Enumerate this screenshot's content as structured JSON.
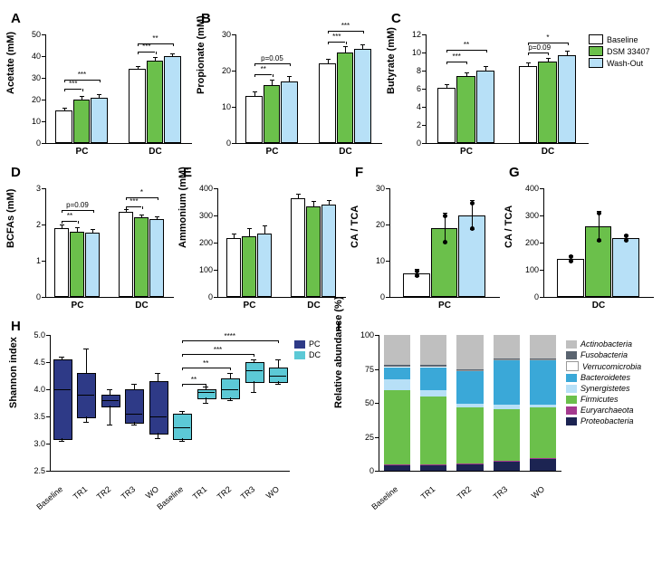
{
  "colors": {
    "baseline": "#ffffff",
    "dsm": "#6bc04b",
    "washout": "#b7e0f7",
    "pc_box": "#2e3a87",
    "dc_box": "#5cc9d6",
    "border": "#000000",
    "phyla": {
      "Proteobacteria": "#1c2452",
      "Euryarchaeota": "#a43a8f",
      "Firmicutes": "#6bc04b",
      "Synergistetes": "#b7e0f7",
      "Bacteroidetes": "#3aa8d8",
      "Verrucomicrobia": "#ffffff",
      "Fusobacteria": "#5a6470",
      "Actinobacteria": "#bfbfbf"
    }
  },
  "legend_conditions": [
    "Baseline",
    "DSM 33407",
    "Wash-Out"
  ],
  "panels_row1": [
    {
      "id": "A",
      "ylabel": "Acetate (mM)",
      "ymin": 0,
      "ymax": 50,
      "ytick": 10,
      "groups": [
        {
          "name": "PC",
          "bars": [
            {
              "v": 15,
              "e": 1
            },
            {
              "v": 20,
              "e": 1.2
            },
            {
              "v": 21,
              "e": 1
            }
          ],
          "sig": [
            {
              "from": 0,
              "to": 1,
              "label": "***",
              "h": 25
            },
            {
              "from": 0,
              "to": 2,
              "label": "***",
              "h": 29
            }
          ]
        },
        {
          "name": "DC",
          "bars": [
            {
              "v": 34,
              "e": 1
            },
            {
              "v": 38,
              "e": 1.2
            },
            {
              "v": 40,
              "e": 1
            }
          ],
          "sig": [
            {
              "from": 0,
              "to": 1,
              "label": "***",
              "h": 42
            },
            {
              "from": 0,
              "to": 2,
              "label": "**",
              "h": 46
            }
          ]
        }
      ]
    },
    {
      "id": "B",
      "ylabel": "Propionate (mM)",
      "ymin": 0,
      "ymax": 30,
      "ytick": 10,
      "groups": [
        {
          "name": "PC",
          "bars": [
            {
              "v": 13,
              "e": 1
            },
            {
              "v": 16,
              "e": 1.3
            },
            {
              "v": 17,
              "e": 1.3
            }
          ],
          "sig": [
            {
              "from": 0,
              "to": 1,
              "label": "**",
              "h": 19
            },
            {
              "from": 0,
              "to": 2,
              "label": "p=0.05",
              "h": 22
            }
          ]
        },
        {
          "name": "DC",
          "bars": [
            {
              "v": 22,
              "e": 1
            },
            {
              "v": 25,
              "e": 1.5
            },
            {
              "v": 26,
              "e": 1
            }
          ],
          "sig": [
            {
              "from": 0,
              "to": 1,
              "label": "***",
              "h": 28
            },
            {
              "from": 0,
              "to": 2,
              "label": "***",
              "h": 31
            }
          ]
        }
      ]
    },
    {
      "id": "C",
      "ylabel": "Butyrate (mM)",
      "ymin": 0,
      "ymax": 12,
      "ytick": 2,
      "groups": [
        {
          "name": "PC",
          "bars": [
            {
              "v": 6.1,
              "e": 0.3
            },
            {
              "v": 7.4,
              "e": 0.3
            },
            {
              "v": 8.0,
              "e": 0.4
            }
          ],
          "sig": [
            {
              "from": 0,
              "to": 1,
              "label": "***",
              "h": 9
            },
            {
              "from": 0,
              "to": 2,
              "label": "**",
              "h": 10.3
            }
          ]
        },
        {
          "name": "DC",
          "bars": [
            {
              "v": 8.5,
              "e": 0.3
            },
            {
              "v": 9.0,
              "e": 0.3
            },
            {
              "v": 9.7,
              "e": 0.4
            }
          ],
          "sig": [
            {
              "from": 0,
              "to": 1,
              "label": "p=0.09",
              "h": 10
            },
            {
              "from": 0,
              "to": 2,
              "label": "*",
              "h": 11.1
            }
          ]
        }
      ]
    }
  ],
  "panels_row2": [
    {
      "id": "D",
      "ylabel": "BCFAs (mM)",
      "ymin": 0,
      "ymax": 3,
      "ytick": 1,
      "groups": [
        {
          "name": "PC",
          "bars": [
            {
              "v": 1.9,
              "e": 0.08
            },
            {
              "v": 1.8,
              "e": 0.1
            },
            {
              "v": 1.78,
              "e": 0.08
            }
          ],
          "sig": [
            {
              "from": 0,
              "to": 1,
              "label": "**",
              "h": 2.1
            },
            {
              "from": 0,
              "to": 2,
              "label": "p=0.09",
              "h": 2.4
            }
          ]
        },
        {
          "name": "DC",
          "bars": [
            {
              "v": 2.35,
              "e": 0.06
            },
            {
              "v": 2.2,
              "e": 0.06
            },
            {
              "v": 2.15,
              "e": 0.06
            }
          ],
          "sig": [
            {
              "from": 0,
              "to": 1,
              "label": "***",
              "h": 2.5
            },
            {
              "from": 0,
              "to": 2,
              "label": "*",
              "h": 2.75
            }
          ]
        }
      ]
    },
    {
      "id": "E",
      "ylabel": "Ammonium (mM)",
      "ymin": 0,
      "ymax": 400,
      "ytick": 100,
      "groups": [
        {
          "name": "PC",
          "bars": [
            {
              "v": 218,
              "e": 12
            },
            {
              "v": 225,
              "e": 25
            },
            {
              "v": 235,
              "e": 25
            }
          ],
          "sig": []
        },
        {
          "name": "DC",
          "bars": [
            {
              "v": 365,
              "e": 12
            },
            {
              "v": 335,
              "e": 15
            },
            {
              "v": 340,
              "e": 15
            }
          ],
          "sig": []
        }
      ]
    },
    {
      "id": "F",
      "ylabel": "CA / TCA",
      "ymin": 0,
      "ymax": 30,
      "ytick": 10,
      "single": "PC",
      "bars": [
        {
          "v": 6.5,
          "e": 1,
          "dots": [
            5.8,
            7.2
          ]
        },
        {
          "v": 19,
          "e": 4,
          "dots": [
            15.2,
            22.5
          ]
        },
        {
          "v": 22.5,
          "e": 4,
          "dots": [
            19,
            26
          ]
        }
      ]
    },
    {
      "id": "G",
      "ylabel": "CA / TCA",
      "ymin": 0,
      "ymax": 400,
      "ytick": 100,
      "single": "DC",
      "bars": [
        {
          "v": 140,
          "e": 10,
          "dots": [
            132,
            148
          ]
        },
        {
          "v": 260,
          "e": 55,
          "dots": [
            210,
            310
          ]
        },
        {
          "v": 218,
          "e": 10,
          "dots": [
            210,
            226
          ]
        }
      ]
    }
  ],
  "panel_H": {
    "id": "H",
    "ylabel": "Shannon index",
    "ymin": 2.5,
    "ymax": 5.0,
    "ytick": 0.5,
    "x_groups": [
      "Baseline",
      "TR1",
      "TR2",
      "TR3",
      "WO"
    ],
    "series": [
      {
        "name": "PC",
        "color_key": "pc_box",
        "boxes": [
          {
            "q1": 3.1,
            "med": 4.0,
            "q3": 4.55,
            "lo": 3.05,
            "hi": 4.6
          },
          {
            "q1": 3.5,
            "med": 3.9,
            "q3": 4.3,
            "lo": 3.4,
            "hi": 4.75
          },
          {
            "q1": 3.7,
            "med": 3.8,
            "q3": 3.9,
            "lo": 3.35,
            "hi": 4.0
          },
          {
            "q1": 3.4,
            "med": 3.55,
            "q3": 4.0,
            "lo": 3.35,
            "hi": 4.1
          },
          {
            "q1": 3.2,
            "med": 3.5,
            "q3": 4.15,
            "lo": 3.1,
            "hi": 4.3
          }
        ]
      },
      {
        "name": "DC",
        "color_key": "dc_box",
        "boxes": [
          {
            "q1": 3.1,
            "med": 3.3,
            "q3": 3.55,
            "lo": 3.05,
            "hi": 3.6
          },
          {
            "q1": 3.85,
            "med": 3.95,
            "q3": 4.0,
            "lo": 3.75,
            "hi": 4.05
          },
          {
            "q1": 3.85,
            "med": 4.0,
            "q3": 4.2,
            "lo": 3.8,
            "hi": 4.3
          },
          {
            "q1": 4.15,
            "med": 4.35,
            "q3": 4.5,
            "lo": 3.95,
            "hi": 4.55
          },
          {
            "q1": 4.15,
            "med": 4.25,
            "q3": 4.4,
            "lo": 4.1,
            "hi": 4.55
          }
        ]
      }
    ],
    "sig": [
      {
        "from": 0,
        "to": 1,
        "label": "**",
        "h": 4.1
      },
      {
        "from": 0,
        "to": 2,
        "label": "**",
        "h": 4.4
      },
      {
        "from": 0,
        "to": 3,
        "label": "***",
        "h": 4.65
      },
      {
        "from": 0,
        "to": 4,
        "label": "****",
        "h": 4.9
      }
    ]
  },
  "panel_I": {
    "id": "I",
    "ylabel": "Relative abundance (%)",
    "ymin": 0,
    "ymax": 100,
    "ytick": 25,
    "x_groups": [
      "Baseline",
      "TR1",
      "TR2",
      "TR3",
      "WO"
    ],
    "order": [
      "Proteobacteria",
      "Euryarchaeota",
      "Firmicutes",
      "Synergistetes",
      "Bacteroidetes",
      "Verrucomicrobia",
      "Fusobacteria",
      "Actinobacteria"
    ],
    "stacks": [
      {
        "Proteobacteria": 4,
        "Euryarchaeota": 0.5,
        "Firmicutes": 55,
        "Synergistetes": 8,
        "Bacteroidetes": 9,
        "Verrucomicrobia": 0.5,
        "Fusobacteria": 1,
        "Actinobacteria": 22
      },
      {
        "Proteobacteria": 4,
        "Euryarchaeota": 0.5,
        "Firmicutes": 50,
        "Synergistetes": 5,
        "Bacteroidetes": 17,
        "Verrucomicrobia": 0.5,
        "Fusobacteria": 1,
        "Actinobacteria": 22
      },
      {
        "Proteobacteria": 5,
        "Euryarchaeota": 0.5,
        "Firmicutes": 41,
        "Synergistetes": 3,
        "Bacteroidetes": 24,
        "Verrucomicrobia": 0.5,
        "Fusobacteria": 1,
        "Actinobacteria": 25
      },
      {
        "Proteobacteria": 7,
        "Euryarchaeota": 0.5,
        "Firmicutes": 38,
        "Synergistetes": 3,
        "Bacteroidetes": 33,
        "Verrucomicrobia": 0.5,
        "Fusobacteria": 1,
        "Actinobacteria": 17
      },
      {
        "Proteobacteria": 9,
        "Euryarchaeota": 0.5,
        "Firmicutes": 37,
        "Synergistetes": 2,
        "Bacteroidetes": 33,
        "Verrucomicrobia": 0.5,
        "Fusobacteria": 1,
        "Actinobacteria": 17
      }
    ],
    "legend": [
      "Actinobacteria",
      "Fusobacteria",
      "Verrucomicrobia",
      "Bacteroidetes",
      "Synergistetes",
      "Firmicutes",
      "Euryarchaeota",
      "Proteobacteria"
    ]
  }
}
